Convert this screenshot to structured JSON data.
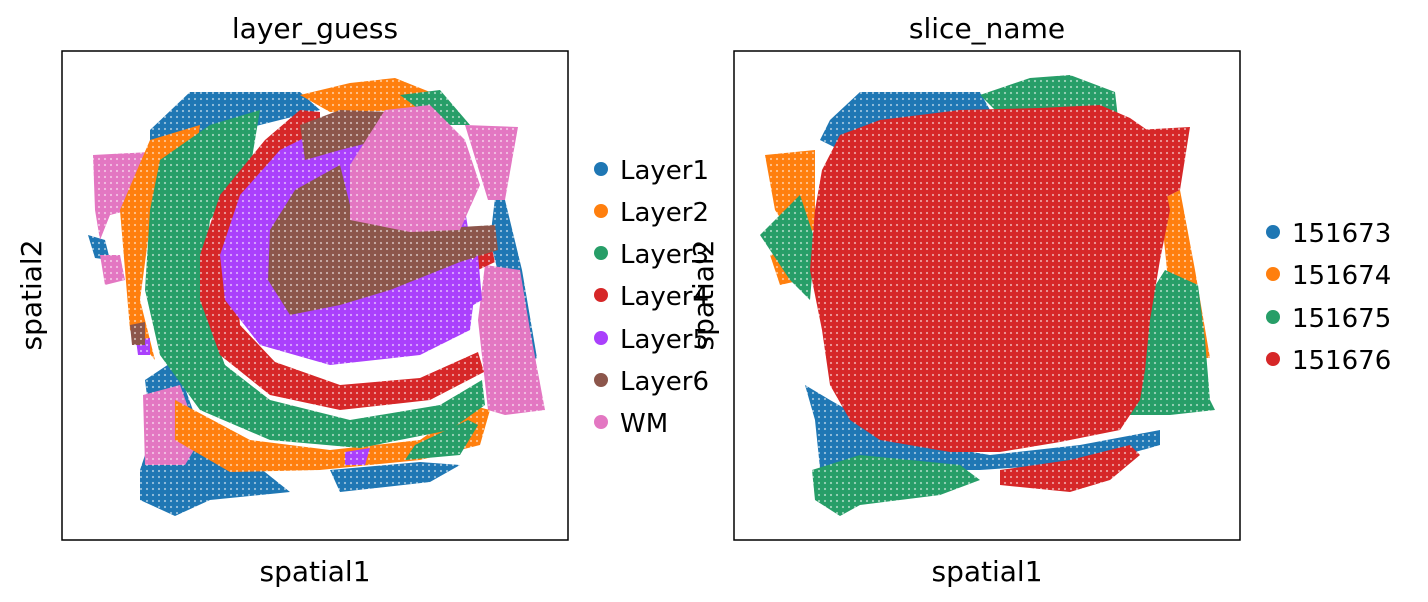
{
  "chart_data": [
    {
      "type": "scatter",
      "title": "layer_guess",
      "xlabel": "spatial1",
      "ylabel": "spatial2",
      "xticks": "none",
      "yticks": "none",
      "grid": false,
      "legend_position": "right",
      "series": [
        {
          "name": "Layer1",
          "color": "#1f77b4"
        },
        {
          "name": "Layer2",
          "color": "#ff7f0e"
        },
        {
          "name": "Layer3",
          "color": "#279e68"
        },
        {
          "name": "Layer4",
          "color": "#d62728"
        },
        {
          "name": "Layer5",
          "color": "#aa40fc"
        },
        {
          "name": "Layer6",
          "color": "#8c564b"
        },
        {
          "name": "WM",
          "color": "#e377c2"
        }
      ]
    },
    {
      "type": "scatter",
      "title": "slice_name",
      "xlabel": "spatial1",
      "ylabel": "spatial2",
      "xticks": "none",
      "yticks": "none",
      "grid": false,
      "legend_position": "right",
      "series": [
        {
          "name": "151673",
          "color": "#1f77b4"
        },
        {
          "name": "151674",
          "color": "#ff7f0e"
        },
        {
          "name": "151675",
          "color": "#279e68"
        },
        {
          "name": "151676",
          "color": "#d62728"
        }
      ]
    }
  ]
}
